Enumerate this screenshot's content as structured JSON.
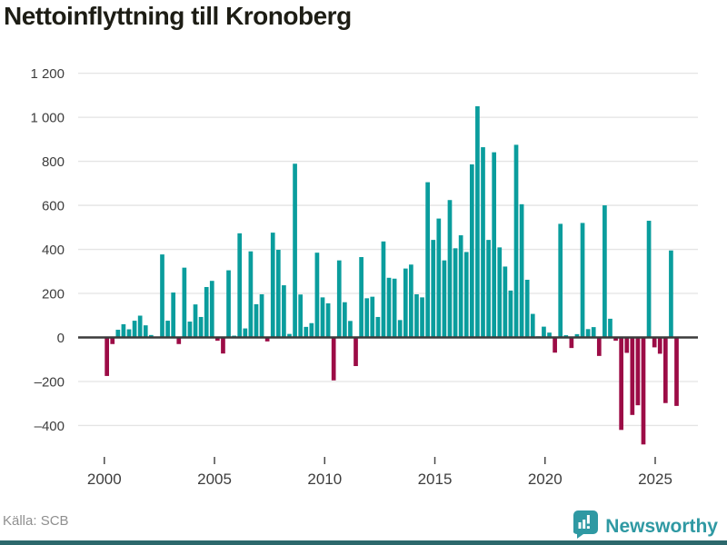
{
  "title": "Nettoinflyttning till Kronoberg",
  "source": "Källa: SCB",
  "brand": {
    "name": "Newsworthy",
    "icon": "newsworthy-bar-chart-bubble-icon"
  },
  "colors": {
    "positive": "#0a9d9d",
    "negative": "#9c0c46",
    "grid": "#e4e4e4",
    "zero_line": "#3b3b3b",
    "tick": "#4a4a4a",
    "axis_text": "#3d3d3d",
    "title_text": "#1d1d15",
    "source_text": "#8f8f8f",
    "brand_teal": "#2f99a3",
    "footer_bar": "#2c686c"
  },
  "chart_data": {
    "type": "bar",
    "title": "Nettoinflyttning till Kronoberg",
    "xlabel": "",
    "ylabel": "",
    "legend": "none",
    "grid": "horizontal",
    "frequency": "quarterly",
    "start_period": "2000Q1",
    "end_period": "2025Q4",
    "ylim": [
      -520,
      1260
    ],
    "y_tick_values": [
      1200,
      1000,
      800,
      600,
      400,
      200,
      0,
      -200,
      -400
    ],
    "y_tick_labels": [
      "1 200",
      "1 000",
      "800",
      "600",
      "400",
      "200",
      "0",
      "–200",
      "–400"
    ],
    "x_tick_years": [
      2000,
      2005,
      2010,
      2015,
      2020,
      2025
    ],
    "x_tick_labels": [
      "2000",
      "2005",
      "2010",
      "2015",
      "2020",
      "2025"
    ],
    "values": [
      -175,
      -30,
      35,
      60,
      37,
      76,
      99,
      55,
      11,
      0,
      377,
      76,
      204,
      -30,
      317,
      72,
      150,
      93,
      229,
      257,
      -15,
      -73,
      305,
      8,
      473,
      41,
      391,
      151,
      196,
      -18,
      476,
      398,
      237,
      16,
      789,
      195,
      48,
      65,
      385,
      182,
      155,
      -195,
      350,
      160,
      75,
      -130,
      365,
      178,
      185,
      93,
      436,
      271,
      267,
      79,
      313,
      331,
      196,
      182,
      705,
      443,
      540,
      350,
      624,
      405,
      464,
      388,
      786,
      1050,
      864,
      443,
      841,
      409,
      322,
      213,
      875,
      605,
      262,
      107,
      5,
      49,
      22,
      -69,
      516,
      10,
      -48,
      15,
      520,
      38,
      47,
      -84,
      600,
      85,
      -15,
      -420,
      -70,
      -352,
      -308,
      -486,
      530,
      -45,
      -74,
      -298,
      395,
      -311
    ]
  }
}
